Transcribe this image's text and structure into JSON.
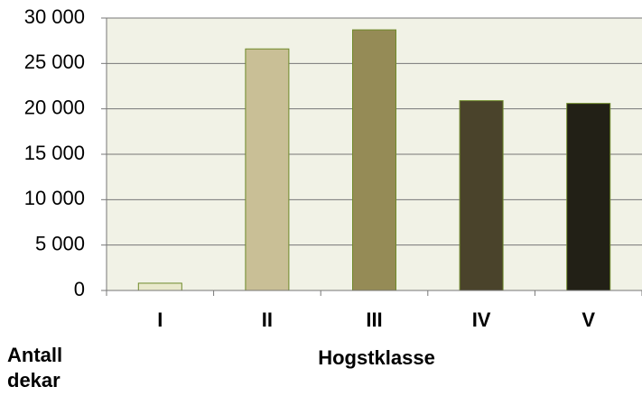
{
  "chart_data": {
    "type": "bar",
    "categories": [
      "I",
      "II",
      "III",
      "IV",
      "V"
    ],
    "values": [
      800,
      26600,
      28700,
      20900,
      20600
    ],
    "colors": [
      "#e9e9cc",
      "#c9bf96",
      "#958b56",
      "#4a432b",
      "#222016"
    ],
    "xlabel": "Hogstklasse",
    "ylabel": "Antall dekar",
    "ylim": [
      0,
      30000
    ],
    "yticks": [
      0,
      {
        "value": 5000,
        "label": "5 000"
      },
      {
        "value": 10000,
        "label": "10 000"
      },
      {
        "value": 15000,
        "label": "15 000"
      },
      {
        "value": 20000,
        "label": "20 000"
      },
      {
        "value": 25000,
        "label": "25 000"
      },
      {
        "value": 30000,
        "label": "30 000"
      }
    ],
    "grid": true
  }
}
